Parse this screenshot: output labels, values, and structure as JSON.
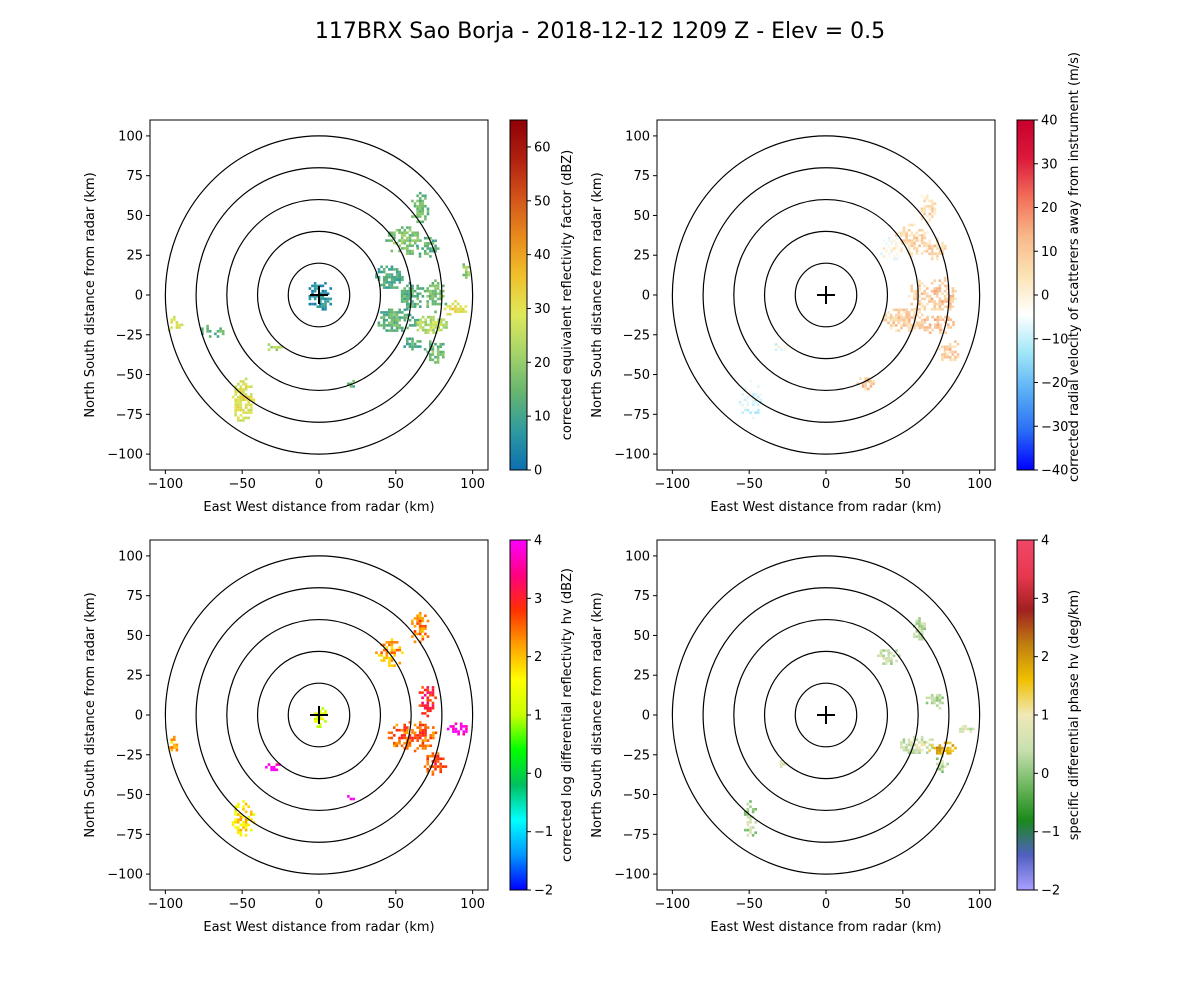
{
  "title": "117BRX Sao Borja - 2018-12-12 1209 Z -  Elev = 0.5",
  "chart_data": [
    {
      "type": "heatmap",
      "field": "reflectivity",
      "xlabel": "East West distance from radar (km)",
      "ylabel": "North South distance from radar (km)",
      "xlim": [
        -110,
        110
      ],
      "ylim": [
        -110,
        110
      ],
      "xticks": [
        "−100",
        "−50",
        "0",
        "50",
        "100"
      ],
      "yticks": [
        "100",
        "75",
        "50",
        "25",
        "0",
        "−25",
        "−50",
        "−75",
        "−100"
      ],
      "range_rings_km": [
        20,
        40,
        60,
        80,
        100
      ],
      "colorbar": {
        "label": "corrected equivalent reflectivity factor (dBZ)",
        "range": [
          0,
          65
        ],
        "ticks": [
          "0",
          "10",
          "20",
          "30",
          "40",
          "50",
          "60"
        ],
        "colors": [
          "#0c6fb0",
          "#2f9aa0",
          "#66b56f",
          "#a5d46a",
          "#dfe85a",
          "#f0c02b",
          "#e88a1c",
          "#d2531a",
          "#b0200f",
          "#8e0005"
        ]
      },
      "echoes": [
        {
          "x": 0,
          "y": 0,
          "rx": 8,
          "ry": 10,
          "value": 4
        },
        {
          "x": 65,
          "y": 55,
          "rx": 6,
          "ry": 10,
          "value": 14
        },
        {
          "x": 55,
          "y": 35,
          "rx": 12,
          "ry": 10,
          "value": 15
        },
        {
          "x": 70,
          "y": 30,
          "rx": 7,
          "ry": 8,
          "value": 12
        },
        {
          "x": 45,
          "y": 12,
          "rx": 10,
          "ry": 8,
          "value": 10
        },
        {
          "x": 60,
          "y": 0,
          "rx": 8,
          "ry": 10,
          "value": 12
        },
        {
          "x": 75,
          "y": 0,
          "rx": 8,
          "ry": 10,
          "value": 15
        },
        {
          "x": 50,
          "y": -15,
          "rx": 14,
          "ry": 8,
          "value": 12
        },
        {
          "x": 72,
          "y": -18,
          "rx": 12,
          "ry": 6,
          "value": 22
        },
        {
          "x": 88,
          "y": -8,
          "rx": 8,
          "ry": 5,
          "value": 28
        },
        {
          "x": 75,
          "y": -35,
          "rx": 7,
          "ry": 8,
          "value": 14
        },
        {
          "x": 60,
          "y": -30,
          "rx": 6,
          "ry": 5,
          "value": 10
        },
        {
          "x": 95,
          "y": 15,
          "rx": 3,
          "ry": 6,
          "value": 18
        },
        {
          "x": -30,
          "y": -32,
          "rx": 8,
          "ry": 3,
          "value": 20
        },
        {
          "x": -50,
          "y": -65,
          "rx": 7,
          "ry": 15,
          "value": 28
        },
        {
          "x": -95,
          "y": -18,
          "rx": 6,
          "ry": 5,
          "value": 28
        },
        {
          "x": -70,
          "y": -22,
          "rx": 8,
          "ry": 4,
          "value": 12
        },
        {
          "x": 20,
          "y": -55,
          "rx": 3,
          "ry": 3,
          "value": 14
        }
      ]
    },
    {
      "type": "heatmap",
      "field": "velocity",
      "xlabel": "East West distance from radar (km)",
      "ylabel": "North South distance from radar (km)",
      "xlim": [
        -110,
        110
      ],
      "ylim": [
        -110,
        110
      ],
      "xticks": [
        "−100",
        "−50",
        "0",
        "50",
        "100"
      ],
      "yticks": [
        "100",
        "75",
        "50",
        "25",
        "0",
        "−25",
        "−50",
        "−75",
        "−100"
      ],
      "range_rings_km": [
        20,
        40,
        60,
        80,
        100
      ],
      "colorbar": {
        "label": "corrected radial velocity of scatterers away from instrument (m/s)",
        "range": [
          -40,
          40
        ],
        "ticks": [
          "−40",
          "−30",
          "−20",
          "−10",
          "0",
          "10",
          "20",
          "30",
          "40"
        ],
        "colors": [
          "#0000ff",
          "#2a6cf5",
          "#58aef5",
          "#9fe6f7",
          "#ffffff",
          "#fbe3b5",
          "#f8b88a",
          "#f2705a",
          "#dc1a3c",
          "#c8002c"
        ]
      },
      "echoes": [
        {
          "x": 65,
          "y": 55,
          "rx": 6,
          "ry": 10,
          "value": 3
        },
        {
          "x": 55,
          "y": 35,
          "rx": 12,
          "ry": 10,
          "value": 4
        },
        {
          "x": 70,
          "y": 30,
          "rx": 7,
          "ry": 8,
          "value": 5
        },
        {
          "x": 42,
          "y": 30,
          "rx": 8,
          "ry": 8,
          "value": -4
        },
        {
          "x": 60,
          "y": 0,
          "rx": 8,
          "ry": 10,
          "value": 6
        },
        {
          "x": 75,
          "y": 0,
          "rx": 10,
          "ry": 12,
          "value": 8
        },
        {
          "x": 50,
          "y": -15,
          "rx": 14,
          "ry": 8,
          "value": 6
        },
        {
          "x": 72,
          "y": -18,
          "rx": 12,
          "ry": 6,
          "value": 9
        },
        {
          "x": 80,
          "y": -35,
          "rx": 7,
          "ry": 8,
          "value": 6
        },
        {
          "x": 25,
          "y": -55,
          "rx": 6,
          "ry": 4,
          "value": 8
        },
        {
          "x": -50,
          "y": -65,
          "rx": 8,
          "ry": 12,
          "value": -9
        },
        {
          "x": -30,
          "y": -32,
          "rx": 5,
          "ry": 3,
          "value": -7
        }
      ]
    },
    {
      "type": "heatmap",
      "field": "differential_reflectivity",
      "xlabel": "East West distance from radar (km)",
      "ylabel": "North South distance from radar (km)",
      "xlim": [
        -110,
        110
      ],
      "ylim": [
        -110,
        110
      ],
      "xticks": [
        "−100",
        "−50",
        "0",
        "50",
        "100"
      ],
      "yticks": [
        "100",
        "75",
        "50",
        "25",
        "0",
        "−25",
        "−50",
        "−75",
        "−100"
      ],
      "range_rings_km": [
        20,
        40,
        60,
        80,
        100
      ],
      "colorbar": {
        "label": "corrected log differential reflectivity hv (dBZ)",
        "range": [
          -2,
          4
        ],
        "ticks": [
          "−2",
          "−1",
          "0",
          "1",
          "2",
          "3",
          "4"
        ],
        "colors": [
          "#0000ff",
          "#0096ff",
          "#00ffff",
          "#00c060",
          "#00ff00",
          "#c8ff00",
          "#ffff00",
          "#ffa000",
          "#ff3000",
          "#ff0080",
          "#ff00ff"
        ]
      },
      "echoes": [
        {
          "x": 0,
          "y": 0,
          "rx": 4,
          "ry": 8,
          "value": 1.2
        },
        {
          "x": 65,
          "y": 55,
          "rx": 6,
          "ry": 10,
          "value": 2.2
        },
        {
          "x": 45,
          "y": 40,
          "rx": 10,
          "ry": 9,
          "value": 2.0
        },
        {
          "x": 70,
          "y": 10,
          "rx": 6,
          "ry": 10,
          "value": 2.8
        },
        {
          "x": 60,
          "y": -12,
          "rx": 16,
          "ry": 10,
          "value": 2.4
        },
        {
          "x": 90,
          "y": -8,
          "rx": 8,
          "ry": 4,
          "value": 3.8
        },
        {
          "x": 75,
          "y": -30,
          "rx": 7,
          "ry": 8,
          "value": 2.6
        },
        {
          "x": -30,
          "y": -32,
          "rx": 6,
          "ry": 3,
          "value": 3.6
        },
        {
          "x": -50,
          "y": -65,
          "rx": 7,
          "ry": 13,
          "value": 1.6
        },
        {
          "x": 20,
          "y": -52,
          "rx": 3,
          "ry": 2,
          "value": 3.9
        },
        {
          "x": -95,
          "y": -18,
          "rx": 4,
          "ry": 5,
          "value": 2.0
        }
      ]
    },
    {
      "type": "heatmap",
      "field": "specific_differential_phase",
      "xlabel": "East West distance from radar (km)",
      "ylabel": "North South distance from radar (km)",
      "xlim": [
        -110,
        110
      ],
      "ylim": [
        -110,
        110
      ],
      "xticks": [
        "−100",
        "−50",
        "0",
        "50",
        "100"
      ],
      "yticks": [
        "100",
        "75",
        "50",
        "25",
        "0",
        "−25",
        "−50",
        "−75",
        "−100"
      ],
      "range_rings_km": [
        20,
        40,
        60,
        80,
        100
      ],
      "colorbar": {
        "label": "specific differential phase hv (deg/km)",
        "range": [
          -2,
          4
        ],
        "ticks": [
          "−2",
          "−1",
          "0",
          "1",
          "2",
          "3",
          "4"
        ],
        "colors": [
          "#a9a0ff",
          "#5060c0",
          "#1a8a1a",
          "#70b860",
          "#c8e0b0",
          "#f0e8b8",
          "#f0c000",
          "#c08010",
          "#a02020",
          "#e83850",
          "#f04868"
        ]
      },
      "echoes": [
        {
          "x": 60,
          "y": 55,
          "rx": 5,
          "ry": 8,
          "value": 0.2
        },
        {
          "x": 40,
          "y": 38,
          "rx": 7,
          "ry": 6,
          "value": 0.3
        },
        {
          "x": 70,
          "y": 10,
          "rx": 6,
          "ry": 6,
          "value": 0.2
        },
        {
          "x": 60,
          "y": -18,
          "rx": 14,
          "ry": 6,
          "value": 0.4
        },
        {
          "x": 75,
          "y": -20,
          "rx": 10,
          "ry": 4,
          "value": 1.6
        },
        {
          "x": 90,
          "y": -8,
          "rx": 6,
          "ry": 3,
          "value": 0.4
        },
        {
          "x": 75,
          "y": -30,
          "rx": 5,
          "ry": 5,
          "value": 0.2
        },
        {
          "x": -50,
          "y": -65,
          "rx": 5,
          "ry": 12,
          "value": 0.1
        },
        {
          "x": -30,
          "y": -30,
          "rx": 4,
          "ry": 2,
          "value": 0.6
        }
      ]
    }
  ]
}
